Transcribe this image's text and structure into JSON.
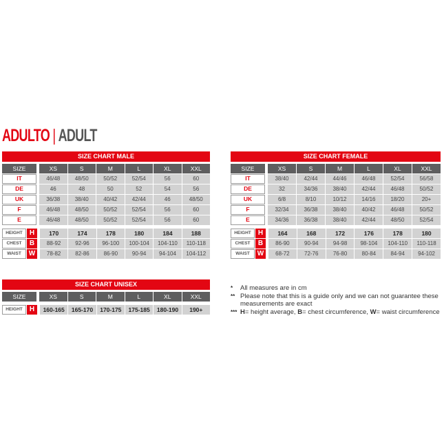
{
  "heading": {
    "primary": "ADULTO",
    "separator": "|",
    "secondary": "ADULT"
  },
  "colors": {
    "accent": "#e30613",
    "header_cell": "#5e5e5f",
    "cell": "#d2d2d2"
  },
  "tables": [
    {
      "id": "male",
      "title": "SIZE CHART MALE",
      "size_label": "SIZE",
      "sizes": [
        "XS",
        "S",
        "M",
        "L",
        "XL",
        "XXL"
      ],
      "conversions": [
        {
          "label": "IT",
          "values": [
            "46/48",
            "48/50",
            "50/52",
            "52/54",
            "56",
            "60"
          ]
        },
        {
          "label": "DE",
          "values": [
            "46",
            "48",
            "50",
            "52",
            "54",
            "56"
          ]
        },
        {
          "label": "UK",
          "values": [
            "36/38",
            "38/40",
            "40/42",
            "42/44",
            "46",
            "48/50"
          ]
        },
        {
          "label": "F",
          "values": [
            "46/48",
            "48/50",
            "50/52",
            "52/54",
            "56",
            "60"
          ]
        },
        {
          "label": "E",
          "values": [
            "46/48",
            "48/50",
            "50/52",
            "52/54",
            "56",
            "60"
          ]
        }
      ],
      "measures": [
        {
          "label": "HEIGHT",
          "letter": "H",
          "values": [
            "170",
            "174",
            "178",
            "180",
            "184",
            "188"
          ]
        },
        {
          "label": "CHEST",
          "letter": "B",
          "values": [
            "88-92",
            "92-96",
            "96-100",
            "100-104",
            "104-110",
            "110-118"
          ]
        },
        {
          "label": "WAIST",
          "letter": "W",
          "values": [
            "78-82",
            "82-86",
            "86-90",
            "90-94",
            "94-104",
            "104-112"
          ]
        }
      ]
    },
    {
      "id": "female",
      "title": "SIZE CHART FEMALE",
      "size_label": "SIZE",
      "sizes": [
        "XS",
        "S",
        "M",
        "L",
        "XL",
        "XXL"
      ],
      "conversions": [
        {
          "label": "IT",
          "values": [
            "38/40",
            "42/44",
            "44/46",
            "46/48",
            "52/54",
            "56/58"
          ]
        },
        {
          "label": "DE",
          "values": [
            "32",
            "34/36",
            "38/40",
            "42/44",
            "46/48",
            "50/52"
          ]
        },
        {
          "label": "UK",
          "values": [
            "6/8",
            "8/10",
            "10/12",
            "14/16",
            "18/20",
            "20+"
          ]
        },
        {
          "label": "F",
          "values": [
            "32/34",
            "36/38",
            "38/40",
            "40/42",
            "46/48",
            "50/52"
          ]
        },
        {
          "label": "E",
          "values": [
            "34/36",
            "36/38",
            "38/40",
            "42/44",
            "48/50",
            "52/54"
          ]
        }
      ],
      "measures": [
        {
          "label": "HEIGHT",
          "letter": "H",
          "values": [
            "164",
            "168",
            "172",
            "176",
            "178",
            "180"
          ]
        },
        {
          "label": "CHEST",
          "letter": "B",
          "values": [
            "86-90",
            "90-94",
            "94-98",
            "98-104",
            "104-110",
            "110-118"
          ]
        },
        {
          "label": "WAIST",
          "letter": "W",
          "values": [
            "68-72",
            "72-76",
            "76-80",
            "80-84",
            "84-94",
            "94-102"
          ]
        }
      ]
    },
    {
      "id": "unisex",
      "title": "SIZE CHART UNISEX",
      "size_label": "SIZE",
      "sizes": [
        "XS",
        "S",
        "M",
        "L",
        "XL",
        "XXL"
      ],
      "conversions": [],
      "measures": [
        {
          "label": "HEIGHT",
          "letter": "H",
          "values": [
            "160-165",
            "165-170",
            "170-175",
            "175-185",
            "180-190",
            "190+"
          ]
        }
      ]
    }
  ],
  "notes": [
    {
      "mark": "*",
      "text": "All measures are in cm"
    },
    {
      "mark": "**",
      "text": "Please note that this is a guide only and we can not guarantee these measurements are exact"
    },
    {
      "mark": "***",
      "parts": [
        {
          "b": "H",
          "t": "= height average, "
        },
        {
          "b": "B",
          "t": "= chest circumference, "
        },
        {
          "b": "W",
          "t": "= waist circumference"
        }
      ]
    }
  ]
}
